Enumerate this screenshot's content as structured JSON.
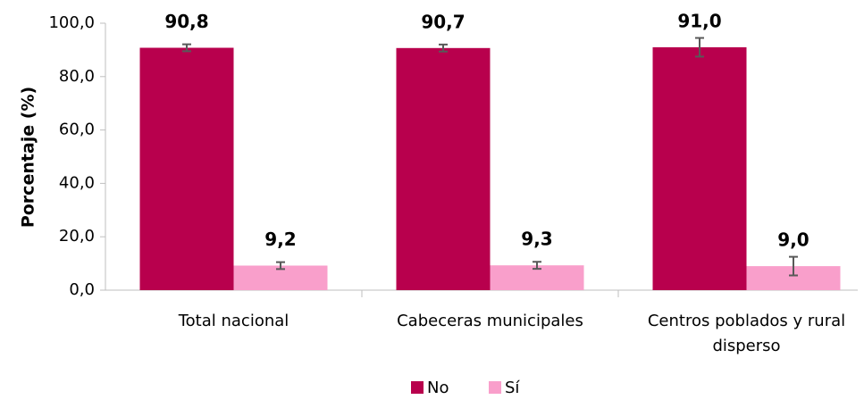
{
  "chart_data": {
    "type": "bar",
    "y_label": "Porcentaje (%)",
    "categories": [
      "Total nacional",
      "Cabeceras municipales",
      "Centros poblados y rural disperso"
    ],
    "series": [
      {
        "name": "No",
        "color": "#b8004d",
        "values": [
          90.8,
          90.7,
          91.0
        ],
        "value_labels": [
          "90,8",
          "90,7",
          "91,0"
        ],
        "errors": [
          1.3,
          1.3,
          3.5
        ]
      },
      {
        "name": "Sí",
        "color": "#f99fcb",
        "values": [
          9.2,
          9.3,
          9.0
        ],
        "value_labels": [
          "9,2",
          "9,3",
          "9,0"
        ],
        "errors": [
          1.3,
          1.3,
          3.5
        ]
      }
    ],
    "ylim": [
      0,
      100
    ],
    "yticks": [
      {
        "value": 0,
        "label": "0,0"
      },
      {
        "value": 20,
        "label": "20,0"
      },
      {
        "value": 40,
        "label": "40,0"
      },
      {
        "value": 60,
        "label": "60,0"
      },
      {
        "value": 80,
        "label": "80,0"
      },
      {
        "value": 100,
        "label": "100,0"
      }
    ],
    "legend": "bottom"
  }
}
